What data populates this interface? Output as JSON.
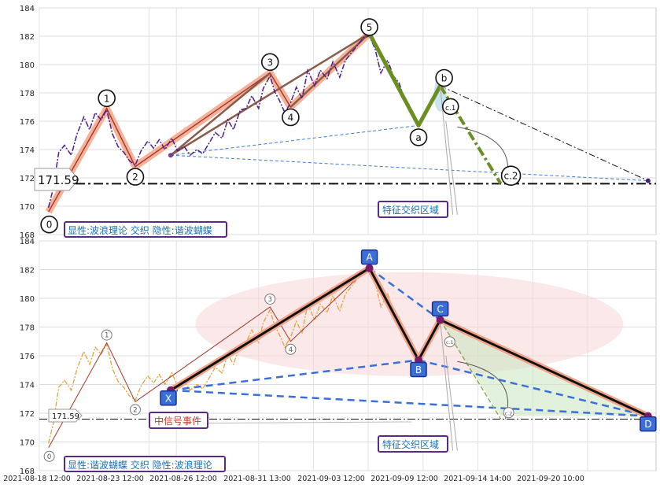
{
  "chart_data": [
    {
      "type": "line",
      "title": "",
      "ylim": [
        168,
        184
      ],
      "y_ticks": [
        "184",
        "182",
        "180",
        "178",
        "176",
        "174",
        "172",
        "170",
        "168"
      ],
      "grid": true,
      "price_level": 171.59,
      "price_label": "171.59",
      "caption": "显性:波浪理论 交织 隐性:谐波蝴蝶",
      "zone_label": "特征交织区域",
      "wave_points": [
        {
          "label": "0",
          "x": 0.8,
          "y": 169.6
        },
        {
          "label": "1",
          "x": 5.9,
          "y": 176.9
        },
        {
          "label": "2",
          "x": 8.4,
          "y": 172.8
        },
        {
          "label": "3",
          "x": 20.2,
          "y": 179.4
        },
        {
          "label": "4",
          "x": 22.0,
          "y": 177.0
        },
        {
          "label": "5",
          "x": 28.9,
          "y": 182.2
        },
        {
          "label": "a",
          "x": 33.2,
          "y": 175.7
        },
        {
          "label": "b",
          "x": 35.1,
          "y": 178.5
        },
        {
          "label": "c.1",
          "x": 35.8,
          "y": 176.7
        },
        {
          "label": "c.2",
          "x": 40.4,
          "y": 171.6
        }
      ],
      "price_series": [
        [
          0.8,
          169.9
        ],
        [
          1.2,
          171.2
        ],
        [
          1.7,
          173.8
        ],
        [
          2.2,
          174.3
        ],
        [
          2.8,
          173.6
        ],
        [
          3.3,
          175.1
        ],
        [
          3.9,
          176.3
        ],
        [
          4.4,
          175.4
        ],
        [
          4.9,
          176.6
        ],
        [
          5.4,
          176.1
        ],
        [
          5.9,
          176.8
        ],
        [
          6.4,
          175.1
        ],
        [
          6.9,
          174.2
        ],
        [
          7.4,
          173.8
        ],
        [
          7.9,
          173.2
        ],
        [
          8.4,
          172.9
        ],
        [
          8.9,
          173.9
        ],
        [
          9.5,
          174.6
        ],
        [
          10.0,
          174.1
        ],
        [
          10.5,
          174.7
        ],
        [
          11.0,
          174.0
        ],
        [
          11.6,
          174.8
        ],
        [
          12.1,
          173.9
        ],
        [
          12.7,
          174.2
        ],
        [
          13.2,
          173.6
        ],
        [
          13.8,
          174.0
        ],
        [
          14.3,
          173.7
        ],
        [
          14.9,
          174.5
        ],
        [
          15.4,
          175.2
        ],
        [
          16.0,
          174.8
        ],
        [
          16.5,
          176.1
        ],
        [
          17.0,
          175.4
        ],
        [
          17.6,
          176.8
        ],
        [
          18.1,
          176.9
        ],
        [
          18.6,
          177.8
        ],
        [
          19.2,
          176.9
        ],
        [
          19.6,
          178.3
        ],
        [
          20.2,
          179.2
        ],
        [
          20.6,
          178.1
        ],
        [
          21.0,
          177.5
        ],
        [
          21.5,
          176.6
        ],
        [
          22.0,
          177.3
        ],
        [
          22.5,
          178.4
        ],
        [
          23.0,
          177.6
        ],
        [
          23.5,
          179.6
        ],
        [
          24.1,
          178.5
        ],
        [
          24.6,
          179.6
        ],
        [
          25.2,
          179.0
        ],
        [
          25.7,
          180.2
        ],
        [
          26.3,
          179.1
        ],
        [
          26.8,
          180.3
        ],
        [
          27.4,
          180.9
        ],
        [
          27.9,
          181.4
        ],
        [
          28.4,
          181.9
        ],
        [
          28.9,
          182.0
        ],
        [
          29.4,
          181.1
        ],
        [
          29.9,
          179.4
        ],
        [
          30.5,
          180.3
        ],
        [
          31.0,
          179.2
        ],
        [
          31.5,
          178.7
        ],
        [
          32.0,
          177.5
        ],
        [
          32.6,
          176.8
        ],
        [
          33.2,
          175.9
        ]
      ]
    },
    {
      "type": "line",
      "title": "",
      "ylim": [
        168,
        184
      ],
      "y_ticks": [
        "184",
        "182",
        "180",
        "178",
        "176",
        "174",
        "172",
        "170",
        "168"
      ],
      "x_ticks": [
        "2021-08-18 12:00",
        "2021-08-23 12:00",
        "2021-08-26 12:00",
        "2021-08-31 13:00",
        "2021-09-03 12:00",
        "2021-09-09 12:00",
        "2021-09-14 14:00",
        "2021-09-20 10:00"
      ],
      "grid": true,
      "price_level": 171.59,
      "price_label": "171.59",
      "caption": "显性:谐波蝴蝶 交织 隐性:波浪理论",
      "zone_label": "特征交织区域",
      "signal_label": "中信号事件",
      "harmonic_points": [
        {
          "label": "X",
          "x": 11.5,
          "y": 173.6
        },
        {
          "label": "A",
          "x": 28.9,
          "y": 182.1
        },
        {
          "label": "B",
          "x": 33.2,
          "y": 175.7
        },
        {
          "label": "C",
          "x": 35.1,
          "y": 178.5
        },
        {
          "label": "D",
          "x": 53.3,
          "y": 171.8
        }
      ],
      "wave_labels": [
        {
          "label": "0",
          "x": 0.8,
          "y": 169.6
        },
        {
          "label": "1",
          "x": 5.9,
          "y": 176.9
        },
        {
          "label": "2",
          "x": 8.4,
          "y": 172.8
        },
        {
          "label": "3",
          "x": 20.2,
          "y": 179.4
        },
        {
          "label": "4",
          "x": 22.0,
          "y": 177.0
        },
        {
          "label": "c.1",
          "x": 35.8,
          "y": 176.7
        },
        {
          "label": "c.2",
          "x": 40.4,
          "y": 171.6
        }
      ]
    }
  ]
}
